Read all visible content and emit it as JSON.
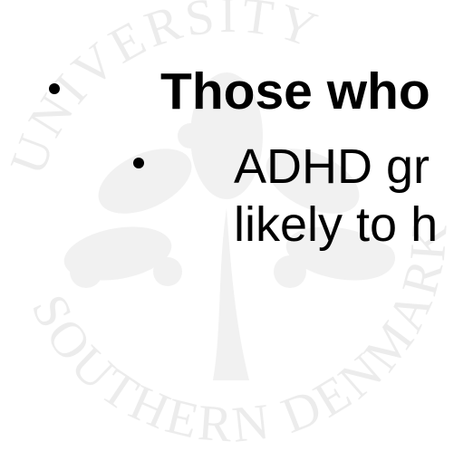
{
  "watermark": {
    "top": "UNIVERSITY",
    "bottom": "SOUTHERN DENMARK"
  },
  "bullets": [
    {
      "text": "Those who",
      "children": [
        {
          "lines": [
            "ADHD gr",
            "likely to h"
          ]
        }
      ]
    }
  ]
}
